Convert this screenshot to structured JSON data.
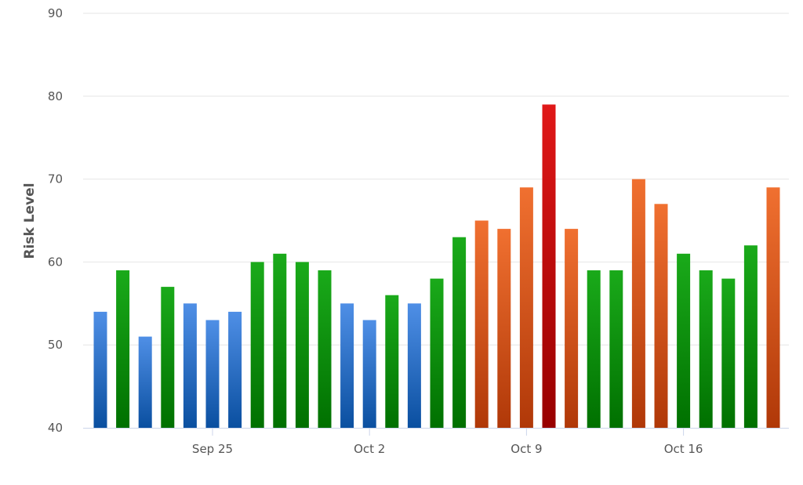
{
  "chart_data": {
    "type": "bar",
    "title": "",
    "xlabel": "",
    "ylabel": "Risk Level",
    "ylim": [
      40,
      90
    ],
    "yticks": [
      40,
      50,
      60,
      70,
      80,
      90
    ],
    "grid": true,
    "legend": "none",
    "x_start_date": "2025-09-21",
    "xtick_labels": [
      {
        "label": "Sep 25",
        "index": 5
      },
      {
        "label": "Oct 2",
        "index": 12
      },
      {
        "label": "Oct 9",
        "index": 19
      },
      {
        "label": "Oct 16",
        "index": 26
      }
    ],
    "values": [
      54,
      59,
      51,
      57,
      55,
      53,
      54,
      60,
      61,
      60,
      59,
      55,
      53,
      56,
      55,
      58,
      63,
      65,
      64,
      69,
      79,
      64,
      59,
      59,
      70,
      67,
      61,
      59,
      58,
      62,
      69
    ],
    "colors": {
      "low": [
        "#4f8fe6",
        "#0a4fa0"
      ],
      "medium": [
        "#1aaa1a",
        "#007000"
      ],
      "high": [
        "#f07030",
        "#b03808"
      ],
      "critical": [
        "#e01818",
        "#980000"
      ]
    },
    "grid_color": "#e6e6e6",
    "axis_color": "#ccd6eb"
  }
}
